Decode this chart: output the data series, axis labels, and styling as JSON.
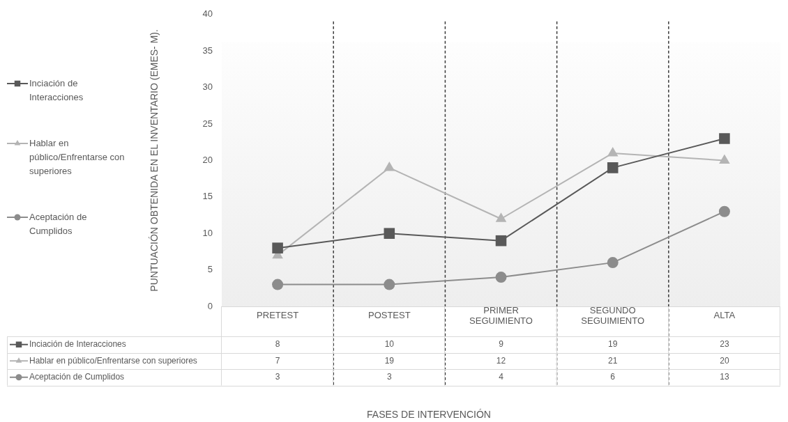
{
  "chart_data": {
    "type": "line",
    "ylabel": "PUNTUACIÓN OBTENIDA EN EL INVENTARIO (EMES- M).",
    "annotations": [
      "FASES DE INTERVENCIÓN"
    ],
    "categories": [
      "PRETEST",
      "POSTEST",
      "PRIMER SEGUIMIENTO",
      "SEGUNDO SEGUIMIENTO",
      "ALTA"
    ],
    "series": [
      {
        "name": "Inciación de Interacciones",
        "color": "#595959",
        "marker": "square",
        "values": [
          8,
          10,
          9,
          19,
          23
        ]
      },
      {
        "name": "Hablar en público/Enfrentarse con superiores",
        "color": "#b4b4b4",
        "marker": "triangle",
        "values": [
          7,
          19,
          12,
          21,
          20
        ]
      },
      {
        "name": "Aceptación de Cumplidos",
        "color": "#8c8c8c",
        "marker": "circle",
        "values": [
          3,
          3,
          4,
          6,
          13
        ]
      }
    ],
    "ylim": [
      0,
      40
    ],
    "yticks": [
      0,
      5,
      10,
      15,
      20,
      25,
      30,
      35,
      40
    ],
    "grid": "x",
    "legend": "left",
    "data_labels": true,
    "line_style": "solid"
  }
}
